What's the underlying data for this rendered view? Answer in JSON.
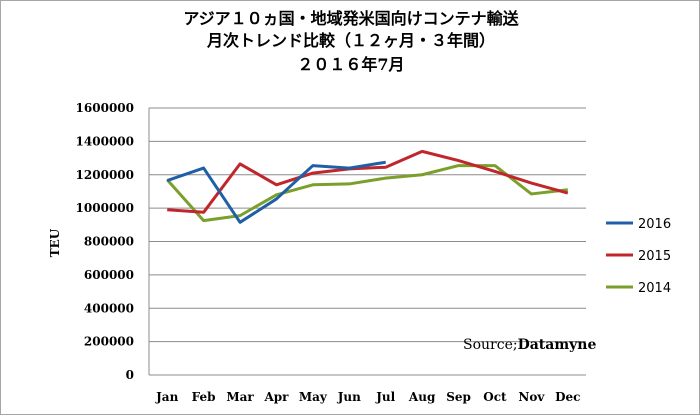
{
  "chart_data": {
    "type": "line",
    "title": [
      "アジア１０ヵ国・地域発米国向けコンテナ輸送",
      "月次トレンド比較（１２ヶ月・３年間）",
      "２０１６年7月"
    ],
    "ylabel": "TEU",
    "xlabel": "",
    "ylim": [
      0,
      1600000
    ],
    "yticks": [
      0,
      200000,
      400000,
      600000,
      800000,
      1000000,
      1200000,
      1400000,
      1600000
    ],
    "categories": [
      "Jan",
      "Feb",
      "Mar",
      "Apr",
      "May",
      "Jun",
      "Jul",
      "Aug",
      "Sep",
      "Oct",
      "Nov",
      "Dec"
    ],
    "grid": true,
    "legend": "right",
    "series": [
      {
        "name": "2016",
        "color": "#1f5fa8",
        "values": [
          1165000,
          1240000,
          915000,
          1055000,
          1255000,
          1240000,
          1275000,
          null,
          null,
          null,
          null,
          null
        ]
      },
      {
        "name": "2015",
        "color": "#c0262b",
        "values": [
          990000,
          975000,
          1265000,
          1140000,
          1210000,
          1235000,
          1245000,
          1340000,
          1285000,
          1220000,
          1150000,
          1090000
        ]
      },
      {
        "name": "2014",
        "color": "#7aa02b",
        "values": [
          1170000,
          925000,
          955000,
          1080000,
          1140000,
          1145000,
          1180000,
          1200000,
          1255000,
          1255000,
          1085000,
          1110000
        ]
      }
    ],
    "annotation": {
      "prefix": "Source;",
      "name": "Datamyne"
    }
  }
}
